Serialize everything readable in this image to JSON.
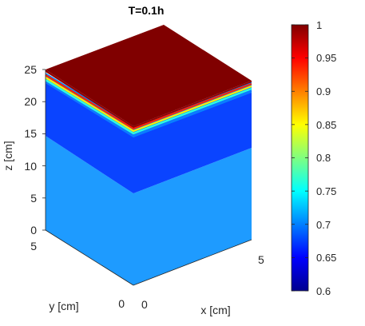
{
  "chart_data": {
    "type": "heatmap",
    "subtype": "3d-block",
    "title": "T=0.1h",
    "xlabel": "x [cm]",
    "ylabel": "y [cm]",
    "zlabel": "z [cm]",
    "xlim": [
      0,
      5
    ],
    "ylim": [
      0,
      5
    ],
    "zlim": [
      0,
      25
    ],
    "xticks": [
      "0",
      "5"
    ],
    "yticks": [
      "0",
      "5"
    ],
    "zticks": [
      "0",
      "5",
      "10",
      "15",
      "20",
      "25"
    ],
    "colormap": "jet",
    "clim": [
      0.6,
      1
    ],
    "colorbar_ticks": [
      "0.6",
      "0.65",
      "0.7",
      "0.75",
      "0.8",
      "0.85",
      "0.9",
      "0.95",
      "1"
    ],
    "layers": [
      {
        "z_from": 0,
        "z_to": 14,
        "value": 0.7
      },
      {
        "z_from": 14,
        "z_to": 23.5,
        "value": 0.65
      },
      {
        "z_from": 23.5,
        "z_to": 25,
        "value": 1.0
      }
    ],
    "grid": false
  }
}
